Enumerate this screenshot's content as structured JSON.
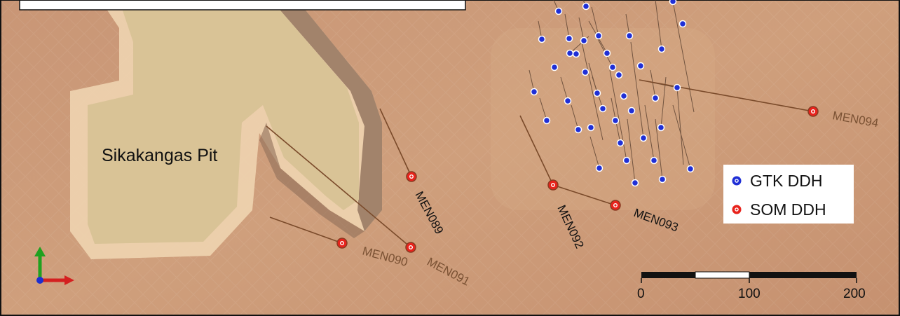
{
  "map": {
    "pit_label": "Sikakangas Pit",
    "scale_bar": {
      "ticks": [
        "0",
        "100",
        "200"
      ]
    },
    "legend": {
      "items": [
        {
          "label": "GTK DDH",
          "color": "#1f2fd6"
        },
        {
          "label": "SOM DDH",
          "color": "#e8231c"
        }
      ]
    },
    "som_holes": [
      {
        "id": "MEN089"
      },
      {
        "id": "MEN090"
      },
      {
        "id": "MEN091"
      },
      {
        "id": "MEN092"
      },
      {
        "id": "MEN093"
      },
      {
        "id": "MEN094"
      }
    ],
    "colors": {
      "terrain": "#c99a78",
      "pit_floor": "#d9c396",
      "trace": "#7a4a2a",
      "label_dark": "#111111",
      "label_brown": "#7b5234"
    },
    "axis_icon": {
      "y_color": "#1fa11f",
      "x_color": "#d42020",
      "z_color": "#1c2fd0"
    }
  }
}
